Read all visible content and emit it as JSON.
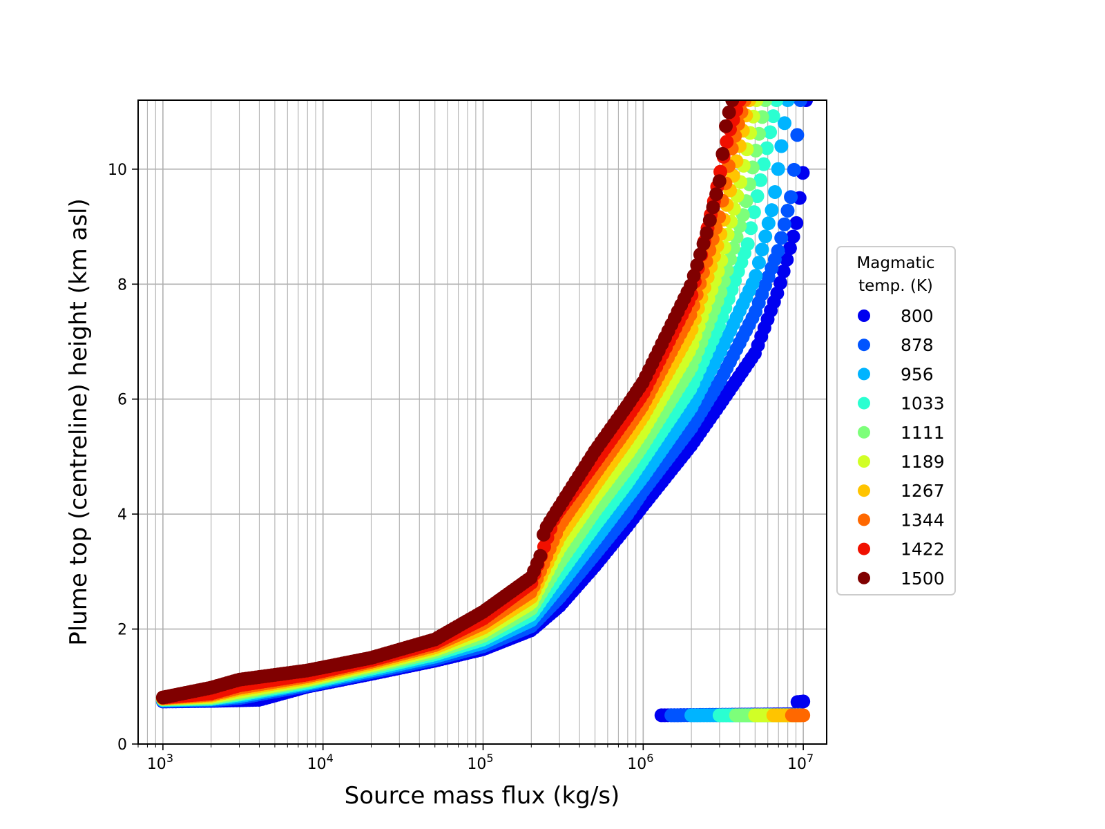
{
  "chart_data": {
    "type": "scatter",
    "title": "",
    "xlabel": "Source mass flux (kg/s)",
    "ylabel": "Plume top (centreline) height (km asl)",
    "xscale": "log",
    "xlim": [
      700,
      14000000
    ],
    "ylim": [
      0,
      11.2
    ],
    "x_ticks": [
      {
        "value": 1000,
        "base": "10",
        "exp": "3"
      },
      {
        "value": 10000,
        "base": "10",
        "exp": "4"
      },
      {
        "value": 100000,
        "base": "10",
        "exp": "5"
      },
      {
        "value": 1000000,
        "base": "10",
        "exp": "6"
      },
      {
        "value": 10000000,
        "base": "10",
        "exp": "7"
      }
    ],
    "y_ticks": [
      0,
      2,
      4,
      6,
      8,
      10
    ],
    "grid": true,
    "legend": {
      "title_lines": [
        "Magmatic",
        "temp. (K)"
      ],
      "placement": "outside-right",
      "colormap": "jet"
    },
    "marker_size_note": "large filled circles",
    "series": [
      {
        "name": "800",
        "color": "#0000f0",
        "main": [
          [
            1000,
            0.74
          ],
          [
            2000,
            0.75
          ],
          [
            4000,
            0.77
          ],
          [
            8000,
            1.0
          ],
          [
            20000,
            1.22
          ],
          [
            50000,
            1.45
          ],
          [
            100000,
            1.65
          ],
          [
            200000,
            1.98
          ],
          [
            300000,
            2.4
          ],
          [
            500000,
            3.1
          ],
          [
            800000,
            3.8
          ],
          [
            1000000,
            4.15
          ],
          [
            2000000,
            5.2
          ],
          [
            3000000,
            5.9
          ],
          [
            5000000,
            6.8
          ],
          [
            7000000,
            7.9
          ],
          [
            9000000,
            9.0
          ],
          [
            10000000,
            10.0
          ],
          [
            10400000,
            11.2
          ]
        ],
        "low": [
          [
            1300000,
            0.5
          ],
          [
            9500000,
            0.52
          ]
        ],
        "low_extra": [
          [
            9200000,
            0.73
          ],
          [
            10000000,
            0.74
          ]
        ]
      },
      {
        "name": "878",
        "color": "#0054ff",
        "main": [
          [
            1000,
            0.75
          ],
          [
            2000,
            0.76
          ],
          [
            3000,
            0.8
          ],
          [
            8000,
            1.02
          ],
          [
            20000,
            1.25
          ],
          [
            50000,
            1.48
          ],
          [
            100000,
            1.7
          ],
          [
            200000,
            2.05
          ],
          [
            300000,
            2.55
          ],
          [
            500000,
            3.3
          ],
          [
            800000,
            4.0
          ],
          [
            1000000,
            4.4
          ],
          [
            2000000,
            5.5
          ],
          [
            3000000,
            6.3
          ],
          [
            5000000,
            7.5
          ],
          [
            7000000,
            8.6
          ],
          [
            8500000,
            9.6
          ],
          [
            9600000,
            11.2
          ]
        ],
        "low": [
          [
            1500000,
            0.5
          ],
          [
            9500000,
            0.51
          ]
        ]
      },
      {
        "name": "956",
        "color": "#00b4ff",
        "main": [
          [
            1000,
            0.76
          ],
          [
            2000,
            0.78
          ],
          [
            3000,
            0.83
          ],
          [
            8000,
            1.05
          ],
          [
            20000,
            1.28
          ],
          [
            50000,
            1.52
          ],
          [
            100000,
            1.76
          ],
          [
            200000,
            2.15
          ],
          [
            300000,
            2.75
          ],
          [
            500000,
            3.55
          ],
          [
            800000,
            4.3
          ],
          [
            1000000,
            4.65
          ],
          [
            2000000,
            5.85
          ],
          [
            3000000,
            6.8
          ],
          [
            5000000,
            8.1
          ],
          [
            6500000,
            9.4
          ],
          [
            8000000,
            11.2
          ]
        ],
        "low": [
          [
            2000000,
            0.5
          ],
          [
            9500000,
            0.5
          ]
        ]
      },
      {
        "name": "1033",
        "color": "#2affd1",
        "main": [
          [
            1000,
            0.77
          ],
          [
            2000,
            0.79
          ],
          [
            3000,
            0.86
          ],
          [
            8000,
            1.07
          ],
          [
            20000,
            1.31
          ],
          [
            50000,
            1.56
          ],
          [
            100000,
            1.82
          ],
          [
            200000,
            2.25
          ],
          [
            300000,
            2.95
          ],
          [
            500000,
            3.8
          ],
          [
            800000,
            4.55
          ],
          [
            1000000,
            4.95
          ],
          [
            2000000,
            6.2
          ],
          [
            3000000,
            7.3
          ],
          [
            4500000,
            8.7
          ],
          [
            6800000,
            11.2
          ]
        ],
        "low": [
          [
            3000000,
            0.5
          ],
          [
            9500000,
            0.5
          ]
        ]
      },
      {
        "name": "1111",
        "color": "#7dff7a",
        "main": [
          [
            1000,
            0.78
          ],
          [
            2000,
            0.8
          ],
          [
            3000,
            0.88
          ],
          [
            8000,
            1.1
          ],
          [
            20000,
            1.34
          ],
          [
            50000,
            1.6
          ],
          [
            100000,
            1.88
          ],
          [
            200000,
            2.35
          ],
          [
            300000,
            3.15
          ],
          [
            500000,
            4.05
          ],
          [
            800000,
            4.8
          ],
          [
            1000000,
            5.2
          ],
          [
            2000000,
            6.55
          ],
          [
            3000000,
            7.8
          ],
          [
            4300000,
            9.3
          ],
          [
            5800000,
            11.2
          ]
        ],
        "low": [
          [
            3800000,
            0.5
          ],
          [
            9500000,
            0.5
          ]
        ]
      },
      {
        "name": "1189",
        "color": "#d1ff26",
        "main": [
          [
            1000,
            0.79
          ],
          [
            2000,
            0.82
          ],
          [
            3000,
            0.91
          ],
          [
            8000,
            1.12
          ],
          [
            20000,
            1.37
          ],
          [
            50000,
            1.64
          ],
          [
            100000,
            1.95
          ],
          [
            200000,
            2.45
          ],
          [
            300000,
            3.4
          ],
          [
            500000,
            4.3
          ],
          [
            800000,
            5.05
          ],
          [
            1000000,
            5.45
          ],
          [
            2000000,
            6.9
          ],
          [
            3000000,
            8.3
          ],
          [
            4000000,
            9.7
          ],
          [
            5100000,
            11.2
          ]
        ],
        "low": [
          [
            5000000,
            0.5
          ],
          [
            9500000,
            0.5
          ]
        ]
      },
      {
        "name": "1267",
        "color": "#ffc400",
        "main": [
          [
            1000,
            0.79
          ],
          [
            2000,
            0.84
          ],
          [
            3000,
            0.95
          ],
          [
            8000,
            1.15
          ],
          [
            20000,
            1.4
          ],
          [
            50000,
            1.68
          ],
          [
            100000,
            2.02
          ],
          [
            200000,
            2.55
          ],
          [
            300000,
            3.6
          ],
          [
            500000,
            4.5
          ],
          [
            800000,
            5.3
          ],
          [
            1000000,
            5.7
          ],
          [
            2000000,
            7.2
          ],
          [
            3000000,
            8.8
          ],
          [
            3800000,
            10.1
          ],
          [
            4600000,
            11.2
          ]
        ],
        "low": [
          [
            6500000,
            0.5
          ],
          [
            9500000,
            0.5
          ]
        ]
      },
      {
        "name": "1344",
        "color": "#ff6800",
        "main": [
          [
            1000,
            0.8
          ],
          [
            2000,
            0.86
          ],
          [
            3000,
            0.98
          ],
          [
            8000,
            1.18
          ],
          [
            20000,
            1.43
          ],
          [
            50000,
            1.72
          ],
          [
            100000,
            2.1
          ],
          [
            200000,
            2.65
          ],
          [
            300000,
            3.8
          ],
          [
            500000,
            4.7
          ],
          [
            800000,
            5.5
          ],
          [
            1000000,
            5.9
          ],
          [
            2000000,
            7.5
          ],
          [
            3000000,
            9.2
          ],
          [
            3600000,
            10.4
          ],
          [
            4300000,
            11.2
          ]
        ],
        "low": [
          [
            8500000,
            0.5
          ],
          [
            10000000,
            0.5
          ]
        ]
      },
      {
        "name": "1422",
        "color": "#f01000",
        "main": [
          [
            1000,
            0.81
          ],
          [
            2000,
            0.88
          ],
          [
            3000,
            1.02
          ],
          [
            8000,
            1.21
          ],
          [
            20000,
            1.46
          ],
          [
            50000,
            1.76
          ],
          [
            100000,
            2.18
          ],
          [
            200000,
            2.8
          ],
          [
            280000,
            3.95
          ],
          [
            500000,
            4.9
          ],
          [
            800000,
            5.7
          ],
          [
            1000000,
            6.1
          ],
          [
            2000000,
            7.8
          ],
          [
            2800000,
            9.5
          ],
          [
            3400000,
            10.6
          ],
          [
            4000000,
            11.2
          ]
        ]
      },
      {
        "name": "1500",
        "color": "#800000",
        "main": [
          [
            1000,
            0.81
          ],
          [
            2000,
            0.98
          ],
          [
            3000,
            1.12
          ],
          [
            8000,
            1.28
          ],
          [
            20000,
            1.5
          ],
          [
            50000,
            1.82
          ],
          [
            100000,
            2.3
          ],
          [
            200000,
            2.9
          ],
          [
            230000,
            3.3
          ],
          [
            240000,
            3.7
          ],
          [
            280000,
            4.0
          ],
          [
            500000,
            5.1
          ],
          [
            800000,
            5.9
          ],
          [
            1000000,
            6.3
          ],
          [
            2000000,
            8.0
          ],
          [
            2500000,
            8.9
          ],
          [
            3000000,
            9.8
          ],
          [
            3300000,
            10.8
          ],
          [
            3600000,
            11.2
          ]
        ]
      }
    ]
  }
}
